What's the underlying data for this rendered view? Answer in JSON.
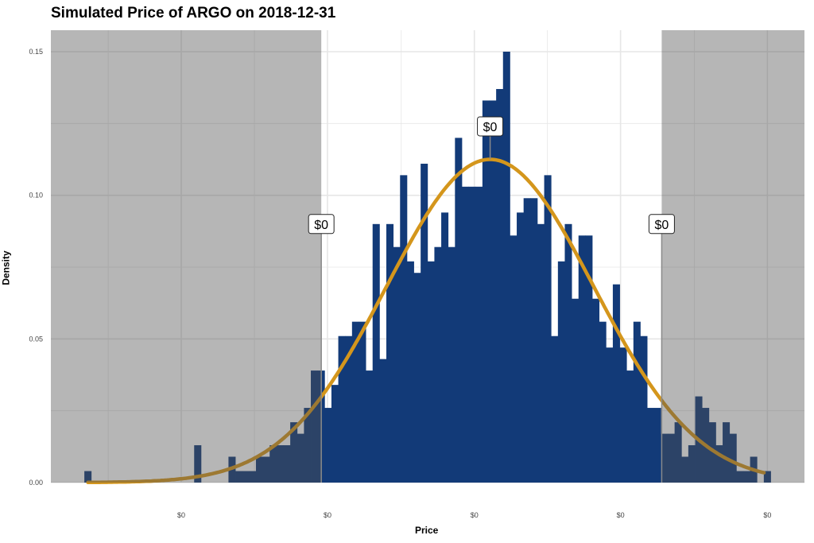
{
  "chart_data": {
    "type": "bar",
    "title": "Simulated Price of ARGO on 2018-12-31",
    "xlabel": "Price",
    "ylabel": "Density",
    "bin_index_range": [
      0,
      99
    ],
    "xlim": [
      -4.9,
      104.9
    ],
    "ylim": [
      0,
      0.15
    ],
    "yticks": [
      0.0,
      0.05,
      0.1,
      0.15
    ],
    "ytick_labels": [
      "0.00",
      "0.05",
      "0.10",
      "0.15"
    ],
    "xticks": [
      14.1,
      35.4,
      56.8,
      78.1,
      99.5
    ],
    "xtick_labels": [
      "$0",
      "$0",
      "$0",
      "$0",
      "$0"
    ],
    "grid": true,
    "values": [
      0.004,
      0,
      0,
      0,
      0,
      0,
      0,
      0,
      0,
      0,
      0,
      0,
      0,
      0,
      0,
      0,
      0.013,
      0,
      0,
      0,
      0,
      0.009,
      0.004,
      0.004,
      0.004,
      0.009,
      0.009,
      0.013,
      0.013,
      0.013,
      0.021,
      0.017,
      0.026,
      0.039,
      0.039,
      0.026,
      0.034,
      0.051,
      0.051,
      0.056,
      0.056,
      0.039,
      0.09,
      0.043,
      0.09,
      0.082,
      0.107,
      0.077,
      0.073,
      0.111,
      0.077,
      0.082,
      0.094,
      0.082,
      0.12,
      0.103,
      0.103,
      0.103,
      0.133,
      0.133,
      0.137,
      0.15,
      0.086,
      0.094,
      0.099,
      0.099,
      0.09,
      0.107,
      0.051,
      0.077,
      0.09,
      0.064,
      0.086,
      0.086,
      0.064,
      0.056,
      0.047,
      0.069,
      0.047,
      0.039,
      0.056,
      0.051,
      0.026,
      0.026,
      0.017,
      0.017,
      0.021,
      0.009,
      0.013,
      0.03,
      0.026,
      0.021,
      0.013,
      0.021,
      0.017,
      0.004,
      0.004,
      0.009,
      0,
      0.004
    ],
    "density_curve": {
      "type": "normal",
      "mean": 59.1,
      "sd": 15.1,
      "peak": 0.1125,
      "from": 0.5,
      "to": 99
    },
    "shaded_regions": [
      [
        -4.9,
        34.5
      ],
      [
        84.1,
        104.9
      ]
    ],
    "annotations": [
      {
        "label": "$0",
        "x": 34.5,
        "y": 0.09
      },
      {
        "label": "$0",
        "x": 59.1,
        "y": 0.124
      },
      {
        "label": "$0",
        "x": 84.1,
        "y": 0.09
      }
    ],
    "colors": {
      "bar": "#123a78",
      "curve": "#d4961c",
      "shade": "rgba(80,80,80,0.42)",
      "grid": "#e6e6e6"
    }
  }
}
